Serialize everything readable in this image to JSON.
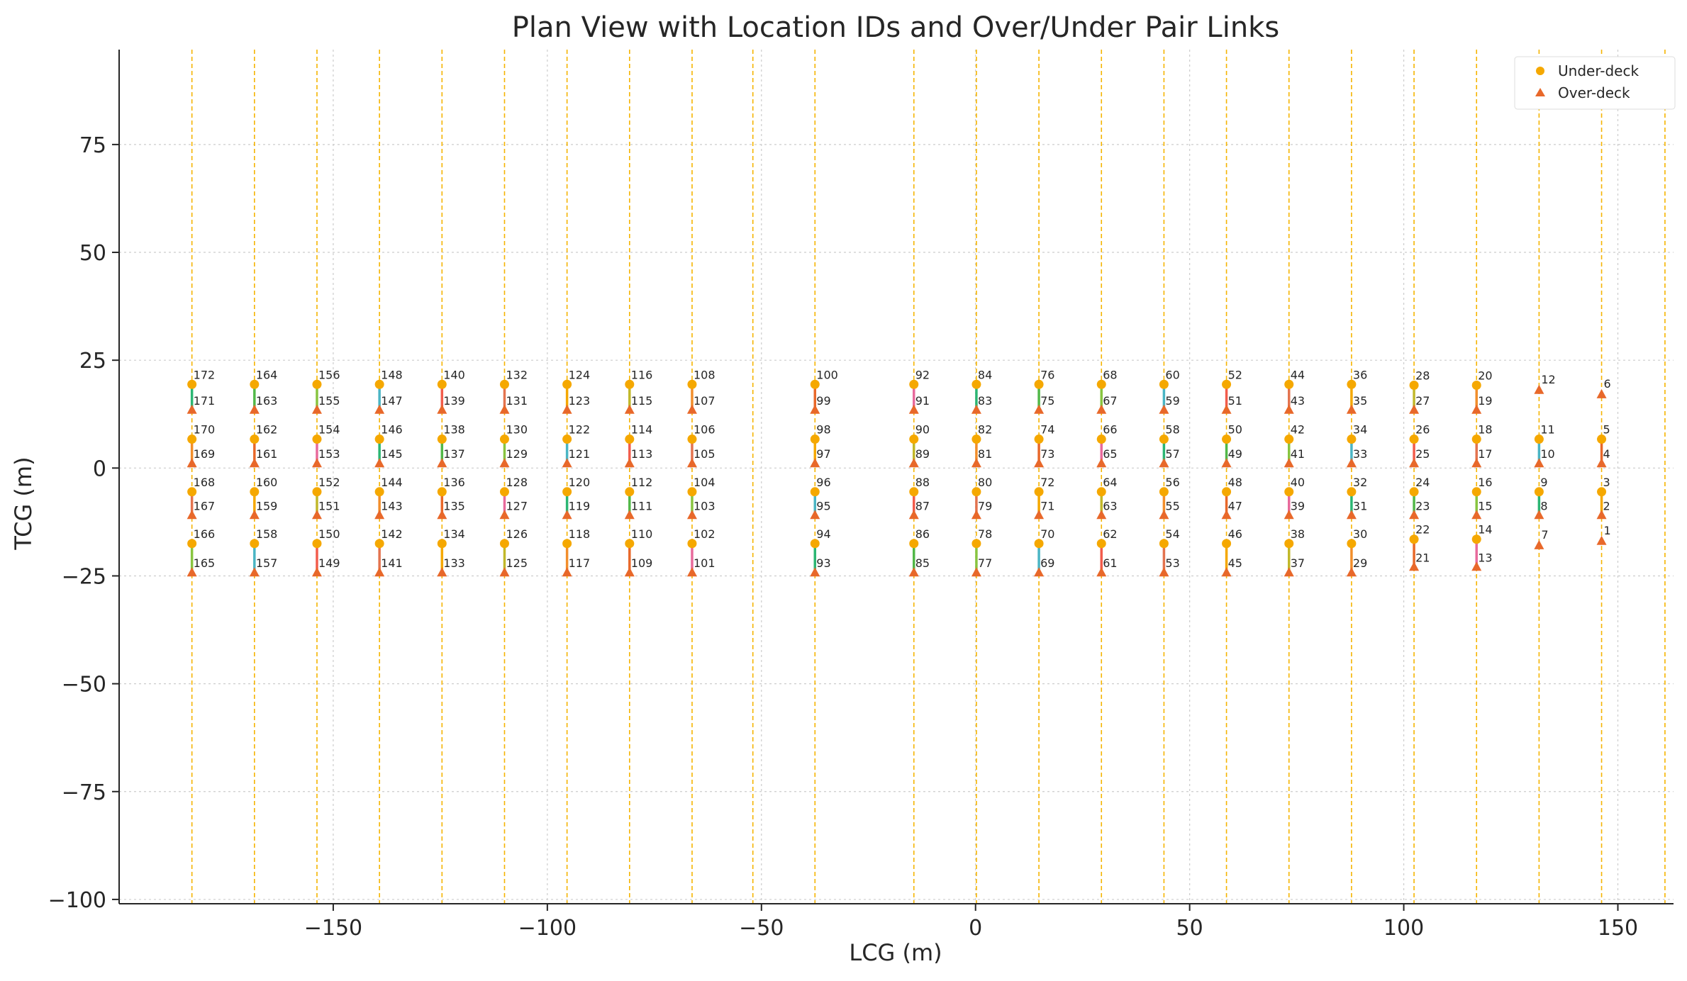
{
  "chart_data": {
    "type": "scatter",
    "title": "Plan View with Location IDs and Over/Under Pair Links",
    "xlabel": "LCG (m)",
    "ylabel": "TCG (m)",
    "xlim": [
      -200,
      163
    ],
    "ylim": [
      -101,
      97
    ],
    "x_ticks": [
      -150,
      -100,
      -50,
      0,
      50,
      100,
      150
    ],
    "y_ticks": [
      -100,
      -75,
      -50,
      -25,
      0,
      25,
      50,
      75
    ],
    "x_tick_labels": [
      "−150",
      "−100",
      "−50",
      "0",
      "50",
      "100",
      "150"
    ],
    "y_tick_labels": [
      "−100",
      "−75",
      "−50",
      "−25",
      "0",
      "25",
      "50",
      "75"
    ],
    "grid": true,
    "legend_position": "top-right",
    "series": [
      {
        "name": "Under-deck",
        "marker": "circle",
        "color": "#f5a800"
      },
      {
        "name": "Over-deck",
        "marker": "triangle",
        "color": "#e8682a"
      }
    ],
    "frame_lines_x": [
      -183.0,
      -168.4,
      -153.8,
      -139.2,
      -124.6,
      -110.0,
      -95.4,
      -80.8,
      -66.2,
      -52.0,
      -37.5,
      -14.4,
      0.2,
      14.8,
      29.4,
      44.0,
      58.6,
      73.2,
      87.8,
      102.4,
      117.0,
      131.6,
      146.2,
      161.0
    ],
    "frame_line_color": "#f5b400",
    "pair_colors": [
      "#e8682a",
      "#f5a800",
      "#4ab5c4",
      "#2bb673",
      "#f28e2b",
      "#e3734f",
      "#88c540",
      "#e86a9c",
      "#c1b82a",
      "#f25c4c",
      "#51b848"
    ],
    "pair_columns": [
      {
        "x": 146.2,
        "pairs": [
          {
            "under": 6,
            "over": 6,
            "uy": 17.0,
            "oy": 17.0,
            "single": "over"
          },
          {
            "under": 5,
            "over": 4,
            "uy": 6.7,
            "oy": 1.0
          },
          {
            "under": 3,
            "over": 2,
            "uy": -5.5,
            "oy": -11.0
          },
          {
            "under": 1,
            "over": 1,
            "uy": -17.0,
            "oy": -17.0,
            "single": "over"
          }
        ]
      },
      {
        "x": 131.6,
        "pairs": [
          {
            "under": 12,
            "over": 12,
            "uy": 18.0,
            "oy": 18.0,
            "single": "over"
          },
          {
            "under": 11,
            "over": 10,
            "uy": 6.7,
            "oy": 1.0
          },
          {
            "under": 9,
            "over": 8,
            "uy": -5.5,
            "oy": -11.0
          },
          {
            "under": 7,
            "over": 7,
            "uy": -18.0,
            "oy": -18.0,
            "single": "over"
          }
        ]
      },
      {
        "x": 117.0,
        "pairs": [
          {
            "under": 20,
            "over": 19,
            "uy": 19.2,
            "oy": 13.4
          },
          {
            "under": 18,
            "over": 17,
            "uy": 6.7,
            "oy": 1.0
          },
          {
            "under": 16,
            "over": 15,
            "uy": -5.5,
            "oy": -11.0
          },
          {
            "under": 14,
            "over": 13,
            "uy": -16.5,
            "oy": -23.0
          }
        ]
      },
      {
        "x": 102.4,
        "pairs": [
          {
            "under": 28,
            "over": 27,
            "uy": 19.2,
            "oy": 13.4
          },
          {
            "under": 26,
            "over": 25,
            "uy": 6.7,
            "oy": 1.0
          },
          {
            "under": 24,
            "over": 23,
            "uy": -5.5,
            "oy": -11.0
          },
          {
            "under": 22,
            "over": 21,
            "uy": -16.5,
            "oy": -23.0
          }
        ]
      },
      {
        "x": 87.8,
        "pairs": [
          {
            "under": 36,
            "over": 35,
            "uy": 19.4,
            "oy": 13.4
          },
          {
            "under": 34,
            "over": 33,
            "uy": 6.7,
            "oy": 1.0
          },
          {
            "under": 32,
            "over": 31,
            "uy": -5.5,
            "oy": -11.0
          },
          {
            "under": 30,
            "over": 29,
            "uy": -17.5,
            "oy": -24.3
          }
        ]
      },
      {
        "x": 73.2,
        "pairs": [
          {
            "under": 44,
            "over": 43,
            "uy": 19.4,
            "oy": 13.4
          },
          {
            "under": 42,
            "over": 41,
            "uy": 6.7,
            "oy": 1.0
          },
          {
            "under": 40,
            "over": 39,
            "uy": -5.5,
            "oy": -11.0
          },
          {
            "under": 38,
            "over": 37,
            "uy": -17.5,
            "oy": -24.3
          }
        ]
      },
      {
        "x": 58.6,
        "pairs": [
          {
            "under": 52,
            "over": 51,
            "uy": 19.4,
            "oy": 13.4
          },
          {
            "under": 50,
            "over": 49,
            "uy": 6.7,
            "oy": 1.0
          },
          {
            "under": 48,
            "over": 47,
            "uy": -5.5,
            "oy": -11.0
          },
          {
            "under": 46,
            "over": 45,
            "uy": -17.5,
            "oy": -24.3
          }
        ]
      },
      {
        "x": 44.0,
        "pairs": [
          {
            "under": 60,
            "over": 59,
            "uy": 19.4,
            "oy": 13.4
          },
          {
            "under": 58,
            "over": 57,
            "uy": 6.7,
            "oy": 1.0
          },
          {
            "under": 56,
            "over": 55,
            "uy": -5.5,
            "oy": -11.0
          },
          {
            "under": 54,
            "over": 53,
            "uy": -17.5,
            "oy": -24.3
          }
        ]
      },
      {
        "x": 29.4,
        "pairs": [
          {
            "under": 68,
            "over": 67,
            "uy": 19.4,
            "oy": 13.4
          },
          {
            "under": 66,
            "over": 65,
            "uy": 6.7,
            "oy": 1.0
          },
          {
            "under": 64,
            "over": 63,
            "uy": -5.5,
            "oy": -11.0
          },
          {
            "under": 62,
            "over": 61,
            "uy": -17.5,
            "oy": -24.3
          }
        ]
      },
      {
        "x": 14.8,
        "pairs": [
          {
            "under": 76,
            "over": 75,
            "uy": 19.4,
            "oy": 13.4
          },
          {
            "under": 74,
            "over": 73,
            "uy": 6.7,
            "oy": 1.0
          },
          {
            "under": 72,
            "over": 71,
            "uy": -5.5,
            "oy": -11.0
          },
          {
            "under": 70,
            "over": 69,
            "uy": -17.5,
            "oy": -24.3
          }
        ]
      },
      {
        "x": 0.2,
        "pairs": [
          {
            "under": 84,
            "over": 83,
            "uy": 19.4,
            "oy": 13.4
          },
          {
            "under": 82,
            "over": 81,
            "uy": 6.7,
            "oy": 1.0
          },
          {
            "under": 80,
            "over": 79,
            "uy": -5.5,
            "oy": -11.0
          },
          {
            "under": 78,
            "over": 77,
            "uy": -17.5,
            "oy": -24.3
          }
        ]
      },
      {
        "x": -14.4,
        "pairs": [
          {
            "under": 92,
            "over": 91,
            "uy": 19.4,
            "oy": 13.4
          },
          {
            "under": 90,
            "over": 89,
            "uy": 6.7,
            "oy": 1.0
          },
          {
            "under": 88,
            "over": 87,
            "uy": -5.5,
            "oy": -11.0
          },
          {
            "under": 86,
            "over": 85,
            "uy": -17.5,
            "oy": -24.3
          }
        ]
      },
      {
        "x": -37.5,
        "pairs": [
          {
            "under": 100,
            "over": 99,
            "uy": 19.4,
            "oy": 13.4
          },
          {
            "under": 98,
            "over": 97,
            "uy": 6.7,
            "oy": 1.0
          },
          {
            "under": 96,
            "over": 95,
            "uy": -5.5,
            "oy": -11.0
          },
          {
            "under": 94,
            "over": 93,
            "uy": -17.5,
            "oy": -24.3
          }
        ]
      },
      {
        "x": -66.2,
        "pairs": [
          {
            "under": 108,
            "over": 107,
            "uy": 19.4,
            "oy": 13.4
          },
          {
            "under": 106,
            "over": 105,
            "uy": 6.7,
            "oy": 1.0
          },
          {
            "under": 104,
            "over": 103,
            "uy": -5.5,
            "oy": -11.0
          },
          {
            "under": 102,
            "over": 101,
            "uy": -17.5,
            "oy": -24.3
          }
        ]
      },
      {
        "x": -80.8,
        "pairs": [
          {
            "under": 116,
            "over": 115,
            "uy": 19.4,
            "oy": 13.4
          },
          {
            "under": 114,
            "over": 113,
            "uy": 6.7,
            "oy": 1.0
          },
          {
            "under": 112,
            "over": 111,
            "uy": -5.5,
            "oy": -11.0
          },
          {
            "under": 110,
            "over": 109,
            "uy": -17.5,
            "oy": -24.3
          }
        ]
      },
      {
        "x": -95.4,
        "pairs": [
          {
            "under": 124,
            "over": 123,
            "uy": 19.4,
            "oy": 13.4
          },
          {
            "under": 122,
            "over": 121,
            "uy": 6.7,
            "oy": 1.0
          },
          {
            "under": 120,
            "over": 119,
            "uy": -5.5,
            "oy": -11.0
          },
          {
            "under": 118,
            "over": 117,
            "uy": -17.5,
            "oy": -24.3
          }
        ]
      },
      {
        "x": -110.0,
        "pairs": [
          {
            "under": 132,
            "over": 131,
            "uy": 19.4,
            "oy": 13.4
          },
          {
            "under": 130,
            "over": 129,
            "uy": 6.7,
            "oy": 1.0
          },
          {
            "under": 128,
            "over": 127,
            "uy": -5.5,
            "oy": -11.0
          },
          {
            "under": 126,
            "over": 125,
            "uy": -17.5,
            "oy": -24.3
          }
        ]
      },
      {
        "x": -124.6,
        "pairs": [
          {
            "under": 140,
            "over": 139,
            "uy": 19.4,
            "oy": 13.4
          },
          {
            "under": 138,
            "over": 137,
            "uy": 6.7,
            "oy": 1.0
          },
          {
            "under": 136,
            "over": 135,
            "uy": -5.5,
            "oy": -11.0
          },
          {
            "under": 134,
            "over": 133,
            "uy": -17.5,
            "oy": -24.3
          }
        ]
      },
      {
        "x": -139.2,
        "pairs": [
          {
            "under": 148,
            "over": 147,
            "uy": 19.4,
            "oy": 13.4
          },
          {
            "under": 146,
            "over": 145,
            "uy": 6.7,
            "oy": 1.0
          },
          {
            "under": 144,
            "over": 143,
            "uy": -5.5,
            "oy": -11.0
          },
          {
            "under": 142,
            "over": 141,
            "uy": -17.5,
            "oy": -24.3
          }
        ]
      },
      {
        "x": -153.8,
        "pairs": [
          {
            "under": 156,
            "over": 155,
            "uy": 19.4,
            "oy": 13.4
          },
          {
            "under": 154,
            "over": 153,
            "uy": 6.7,
            "oy": 1.0
          },
          {
            "under": 152,
            "over": 151,
            "uy": -5.5,
            "oy": -11.0
          },
          {
            "under": 150,
            "over": 149,
            "uy": -17.5,
            "oy": -24.3
          }
        ]
      },
      {
        "x": -168.4,
        "pairs": [
          {
            "under": 164,
            "over": 163,
            "uy": 19.4,
            "oy": 13.4
          },
          {
            "under": 162,
            "over": 161,
            "uy": 6.7,
            "oy": 1.0
          },
          {
            "under": 160,
            "over": 159,
            "uy": -5.5,
            "oy": -11.0
          },
          {
            "under": 158,
            "over": 157,
            "uy": -17.5,
            "oy": -24.3
          }
        ]
      },
      {
        "x": -183.0,
        "pairs": [
          {
            "under": 172,
            "over": 171,
            "uy": 19.4,
            "oy": 13.4
          },
          {
            "under": 170,
            "over": 169,
            "uy": 6.7,
            "oy": 1.0
          },
          {
            "under": 168,
            "over": 167,
            "uy": -5.5,
            "oy": -11.0
          },
          {
            "under": 166,
            "over": 165,
            "uy": -17.5,
            "oy": -24.3
          }
        ]
      }
    ]
  }
}
